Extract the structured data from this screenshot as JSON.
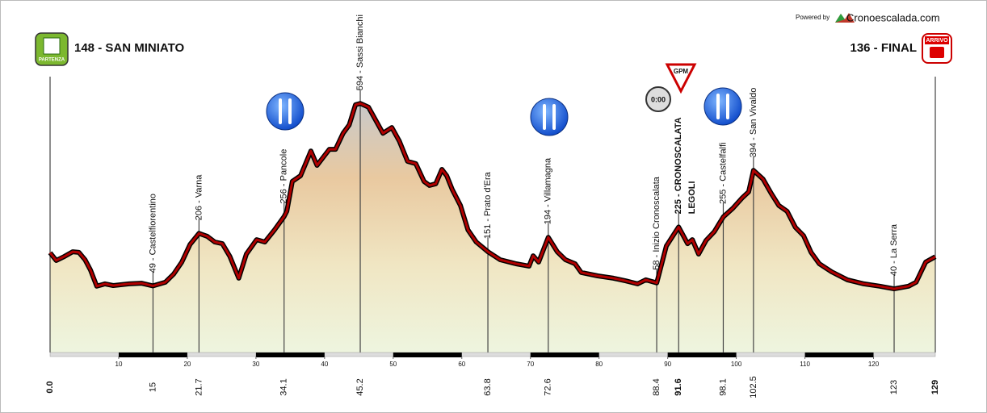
{
  "header": {
    "powered_by": "Powered by",
    "brand": "Cronoescalada.com",
    "start_badge": "PARTENZA",
    "start_title": "148 - SAN MINIATO",
    "finish_badge": "ARRIVO",
    "finish_title": "136 - FINAL",
    "gpm_badge": "GPM",
    "timer_badge": "0:00"
  },
  "chart_data": {
    "type": "area",
    "color": "#b00000",
    "x": [
      0,
      0.9,
      2.1,
      3.3,
      4.2,
      5.1,
      5.9,
      6.8,
      8.0,
      9.2,
      11.5,
      13.3,
      15,
      16.8,
      18.0,
      19.2,
      20.4,
      21.7,
      22.9,
      24.0,
      25.1,
      26.2,
      27.5,
      28.6,
      30.1,
      31.3,
      32.7,
      34.1,
      34.5,
      35.3,
      36.5,
      38.0,
      38.9,
      39.8,
      40.7,
      41.6,
      42.7,
      43.6,
      44.5,
      45.2,
      46.4,
      47.4,
      48.5,
      49.8,
      50.9,
      52.1,
      53.3,
      54.5,
      55.3,
      56.2,
      57.1,
      57.8,
      58.6,
      59.8,
      60.9,
      62.1,
      63.8,
      65.6,
      67.9,
      69.8,
      70.4,
      71.2,
      72.6,
      73.9,
      75.1,
      76.5,
      77.4,
      79.8,
      82.1,
      83.9,
      85.6,
      86.8,
      88.4,
      89.8,
      91.6,
      92.9,
      93.6,
      94.5,
      95.6,
      96.8,
      98.1,
      99.5,
      100.9,
      101.8,
      102.5,
      103.9,
      105.1,
      106.2,
      107.4,
      108.6,
      109.8,
      110.9,
      112.1,
      113.9,
      116.2,
      118.6,
      120.9,
      123,
      125.1,
      126.2,
      127.6,
      129
    ],
    "values": [
      148,
      125,
      137,
      151,
      149,
      127,
      96,
      48,
      55,
      50,
      55,
      57,
      49,
      60,
      84,
      120,
      173,
      206,
      197,
      180,
      175,
      137,
      72,
      144,
      187,
      180,
      216,
      256,
      272,
      361,
      378,
      452,
      409,
      433,
      457,
      457,
      505,
      530,
      590,
      594,
      583,
      546,
      505,
      522,
      481,
      421,
      414,
      361,
      349,
      354,
      397,
      378,
      337,
      289,
      216,
      180,
      151,
      127,
      115,
      108,
      139,
      120,
      194,
      151,
      127,
      115,
      89,
      79,
      72,
      64,
      55,
      67,
      58,
      168,
      225,
      175,
      187,
      144,
      185,
      211,
      255,
      281,
      313,
      330,
      394,
      368,
      325,
      289,
      272,
      224,
      199,
      149,
      115,
      91,
      67,
      55,
      48,
      40,
      48,
      60,
      120,
      136
    ],
    "xlim": [
      0,
      129
    ],
    "ylim": [
      -150,
      850
    ],
    "xticks": [
      10,
      20,
      30,
      40,
      50,
      60,
      70,
      80,
      90,
      100,
      110,
      120
    ],
    "waypoint_ticks": [
      {
        "value": 0,
        "label": "0.0"
      },
      15,
      21.7,
      34.1,
      45.2,
      63.8,
      72.6,
      88.4,
      91.6,
      98.1,
      102.5,
      123,
      129
    ],
    "waypoint_labels": [
      null,
      "49 - Castelfiorentino",
      "206 - Varna",
      "256 - Pancole",
      "594 - Sassi Bianchi",
      "151 - Prato d'Era",
      "194 - Villamagna",
      "58 - Inizio Cronoscalata",
      "225 - CRONOSCALATA",
      "255 - Castelfalfi",
      "394 - San Vivaldo",
      "40 - La Serra",
      null
    ],
    "climb_name": "LEGOLI",
    "highlight": [
      0,
      8,
      12
    ]
  }
}
